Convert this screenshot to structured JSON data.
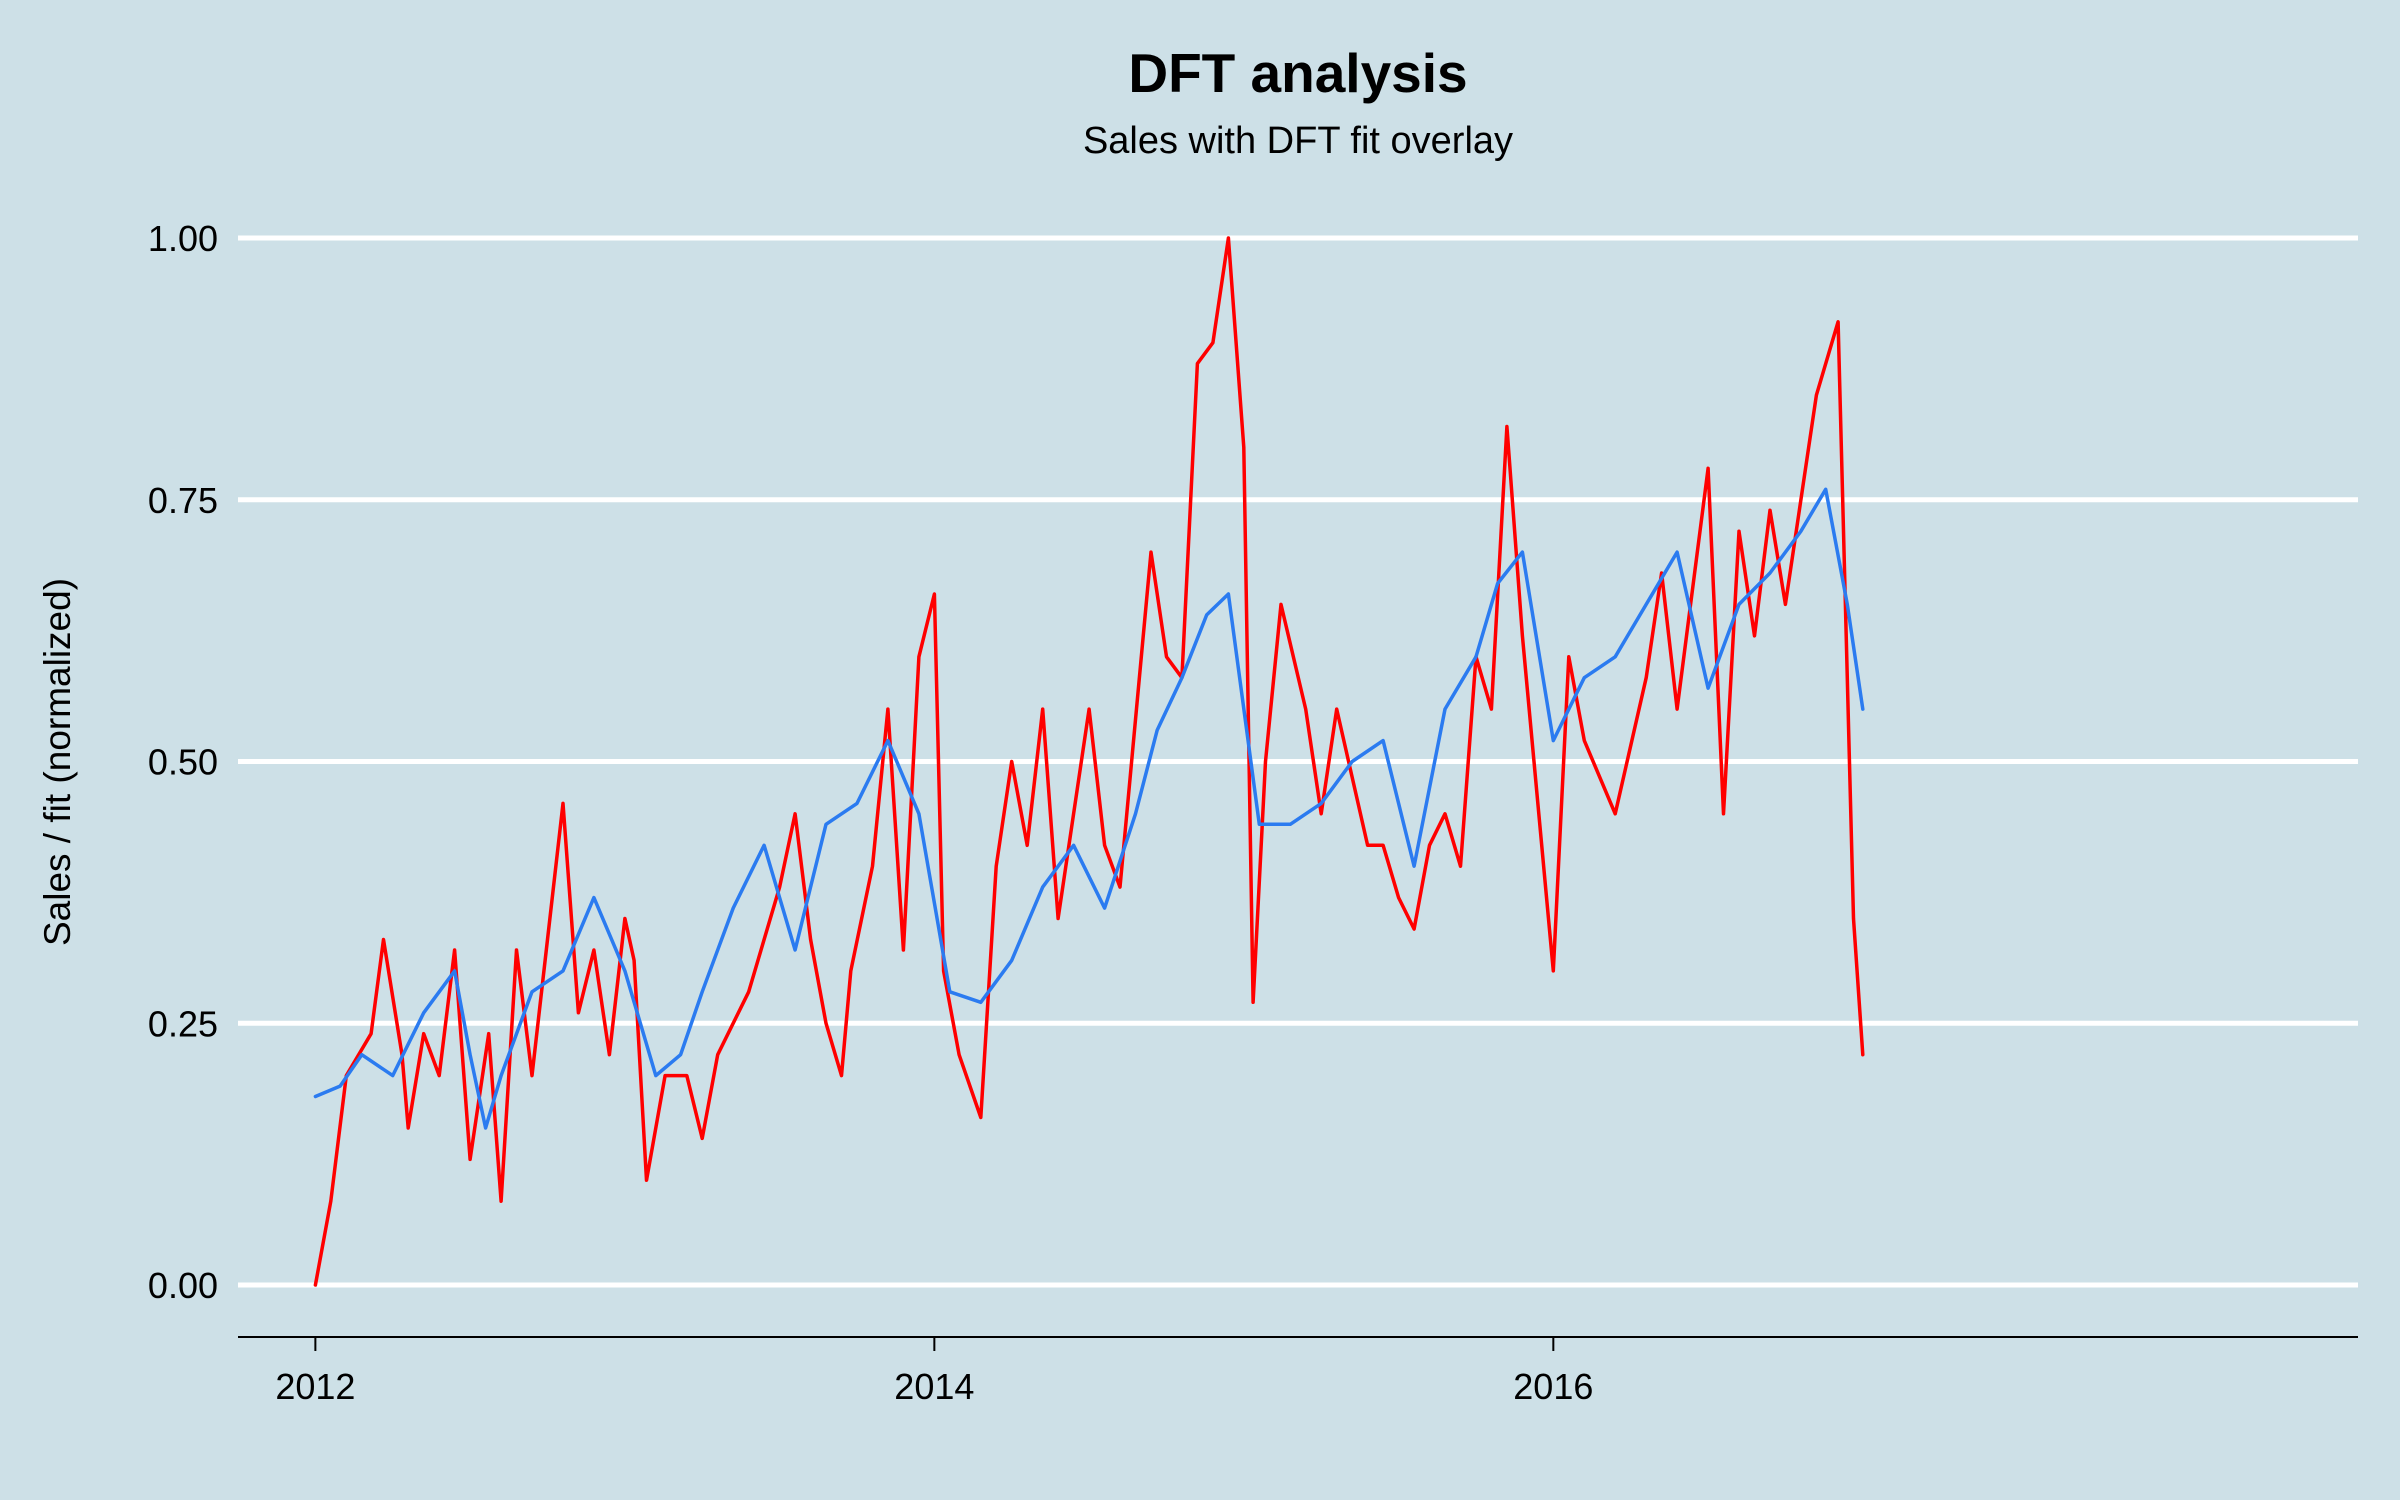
{
  "chart_data": {
    "type": "line",
    "title": "DFT analysis",
    "subtitle": "Sales with DFT fit overlay",
    "xlabel": "",
    "ylabel": "Sales / fit (normalized)",
    "xlim": [
      2011.75,
      2018.6
    ],
    "ylim": [
      0,
      1
    ],
    "x_ticks": [
      2012,
      2014,
      2016
    ],
    "x_tick_labels": [
      "2012",
      "2014",
      "2016"
    ],
    "y_ticks": [
      0,
      0.25,
      0.5,
      0.75,
      1.0
    ],
    "y_tick_labels": [
      "0.00",
      "0.25",
      "0.50",
      "0.75",
      "1.00"
    ],
    "grid": "horizontal",
    "legend": "none",
    "colors": {
      "background": "#cde0e7",
      "grid": "#ffffff",
      "sales": "#ff0000",
      "fit": "#2b7bf0"
    },
    "series": [
      {
        "key": "sales",
        "x": [
          2012.0,
          2012.05,
          2012.1,
          2012.18,
          2012.22,
          2012.28,
          2012.3,
          2012.35,
          2012.4,
          2012.45,
          2012.5,
          2012.56,
          2012.6,
          2012.65,
          2012.7,
          2012.75,
          2012.8,
          2012.85,
          2012.9,
          2012.95,
          2013.0,
          2013.03,
          2013.07,
          2013.13,
          2013.2,
          2013.25,
          2013.3,
          2013.4,
          2013.5,
          2013.55,
          2013.6,
          2013.65,
          2013.7,
          2013.73,
          2013.8,
          2013.85,
          2013.9,
          2013.95,
          2014.0,
          2014.03,
          2014.08,
          2014.15,
          2014.2,
          2014.25,
          2014.3,
          2014.35,
          2014.4,
          2014.5,
          2014.55,
          2014.6,
          2014.7,
          2014.75,
          2014.8,
          2014.85,
          2014.9,
          2014.95,
          2015.0,
          2015.03,
          2015.07,
          2015.12,
          2015.2,
          2015.25,
          2015.3,
          2015.4,
          2015.45,
          2015.5,
          2015.55,
          2015.6,
          2015.65,
          2015.7,
          2015.75,
          2015.8,
          2015.85,
          2015.9,
          2016.0,
          2016.05,
          2016.1,
          2016.2,
          2016.3,
          2016.35,
          2016.4,
          2016.5,
          2016.55,
          2016.6,
          2016.65,
          2016.7,
          2016.75,
          2016.85,
          2016.92,
          2016.97,
          2017.0
        ],
        "values": [
          0.0,
          0.08,
          0.2,
          0.24,
          0.33,
          0.22,
          0.15,
          0.24,
          0.2,
          0.32,
          0.12,
          0.24,
          0.08,
          0.32,
          0.2,
          0.33,
          0.46,
          0.26,
          0.32,
          0.22,
          0.35,
          0.31,
          0.1,
          0.2,
          0.2,
          0.14,
          0.22,
          0.28,
          0.38,
          0.45,
          0.33,
          0.25,
          0.2,
          0.3,
          0.4,
          0.55,
          0.32,
          0.6,
          0.66,
          0.3,
          0.22,
          0.16,
          0.4,
          0.5,
          0.42,
          0.55,
          0.35,
          0.55,
          0.42,
          0.38,
          0.7,
          0.6,
          0.58,
          0.88,
          0.9,
          1.0,
          0.8,
          0.27,
          0.5,
          0.65,
          0.55,
          0.45,
          0.55,
          0.42,
          0.42,
          0.37,
          0.34,
          0.42,
          0.45,
          0.4,
          0.6,
          0.55,
          0.82,
          0.62,
          0.3,
          0.6,
          0.52,
          0.45,
          0.58,
          0.68,
          0.55,
          0.78,
          0.45,
          0.72,
          0.62,
          0.74,
          0.65,
          0.85,
          0.92,
          0.35,
          0.22
        ]
      },
      {
        "key": "fit",
        "x": [
          2012.0,
          2012.08,
          2012.15,
          2012.25,
          2012.35,
          2012.45,
          2012.5,
          2012.55,
          2012.6,
          2012.7,
          2012.8,
          2012.9,
          2013.0,
          2013.1,
          2013.18,
          2013.25,
          2013.35,
          2013.45,
          2013.55,
          2013.65,
          2013.75,
          2013.85,
          2013.95,
          2014.05,
          2014.15,
          2014.25,
          2014.35,
          2014.45,
          2014.55,
          2014.65,
          2014.72,
          2014.8,
          2014.88,
          2014.95,
          2015.05,
          2015.15,
          2015.25,
          2015.35,
          2015.45,
          2015.55,
          2015.65,
          2015.75,
          2015.82,
          2015.9,
          2016.0,
          2016.1,
          2016.2,
          2016.3,
          2016.4,
          2016.5,
          2016.6,
          2016.7,
          2016.8,
          2016.88,
          2016.95,
          2017.0
        ],
        "values": [
          0.18,
          0.19,
          0.22,
          0.2,
          0.26,
          0.3,
          0.22,
          0.15,
          0.2,
          0.28,
          0.3,
          0.37,
          0.3,
          0.2,
          0.22,
          0.28,
          0.36,
          0.42,
          0.32,
          0.44,
          0.46,
          0.52,
          0.45,
          0.28,
          0.27,
          0.31,
          0.38,
          0.42,
          0.36,
          0.45,
          0.53,
          0.58,
          0.64,
          0.66,
          0.44,
          0.44,
          0.46,
          0.5,
          0.52,
          0.4,
          0.55,
          0.6,
          0.67,
          0.7,
          0.52,
          0.58,
          0.6,
          0.65,
          0.7,
          0.57,
          0.65,
          0.68,
          0.72,
          0.76,
          0.65,
          0.55
        ]
      }
    ]
  }
}
